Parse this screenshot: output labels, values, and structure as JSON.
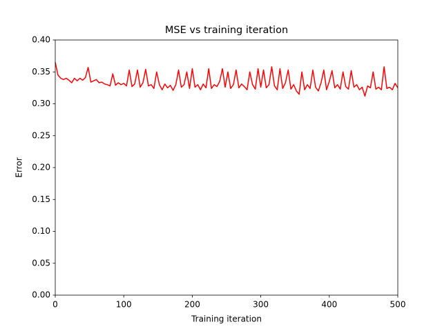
{
  "chart_data": {
    "type": "line",
    "title": "MSE vs training iteration",
    "x_label": "Training iteration",
    "y_label": "Error",
    "x": [
      0,
      4,
      8,
      12,
      16,
      20,
      24,
      28,
      32,
      36,
      40,
      44,
      48,
      52,
      56,
      60,
      64,
      68,
      72,
      76,
      80,
      84,
      88,
      92,
      96,
      100,
      104,
      108,
      112,
      116,
      120,
      124,
      128,
      132,
      136,
      140,
      144,
      148,
      152,
      156,
      160,
      164,
      168,
      172,
      176,
      180,
      184,
      188,
      192,
      196,
      200,
      204,
      208,
      212,
      216,
      220,
      224,
      228,
      232,
      236,
      240,
      244,
      248,
      252,
      256,
      260,
      264,
      268,
      272,
      276,
      280,
      284,
      288,
      292,
      296,
      300,
      304,
      308,
      312,
      316,
      320,
      324,
      328,
      332,
      336,
      340,
      344,
      348,
      352,
      356,
      360,
      364,
      368,
      372,
      376,
      380,
      384,
      388,
      392,
      396,
      400,
      404,
      408,
      412,
      416,
      420,
      424,
      428,
      432,
      436,
      440,
      444,
      448,
      452,
      456,
      460,
      464,
      468,
      472,
      476,
      480,
      484,
      488,
      492,
      496,
      500
    ],
    "values": [
      0.365,
      0.345,
      0.34,
      0.338,
      0.34,
      0.337,
      0.333,
      0.34,
      0.336,
      0.34,
      0.337,
      0.341,
      0.357,
      0.334,
      0.336,
      0.338,
      0.333,
      0.334,
      0.331,
      0.33,
      0.328,
      0.347,
      0.329,
      0.333,
      0.33,
      0.332,
      0.328,
      0.353,
      0.327,
      0.331,
      0.353,
      0.326,
      0.333,
      0.354,
      0.328,
      0.33,
      0.324,
      0.35,
      0.33,
      0.322,
      0.331,
      0.325,
      0.329,
      0.321,
      0.33,
      0.353,
      0.326,
      0.33,
      0.35,
      0.324,
      0.355,
      0.326,
      0.33,
      0.322,
      0.331,
      0.325,
      0.355,
      0.324,
      0.33,
      0.327,
      0.335,
      0.355,
      0.326,
      0.35,
      0.324,
      0.33,
      0.353,
      0.325,
      0.331,
      0.327,
      0.322,
      0.35,
      0.33,
      0.323,
      0.355,
      0.326,
      0.353,
      0.325,
      0.33,
      0.358,
      0.328,
      0.322,
      0.355,
      0.324,
      0.333,
      0.353,
      0.323,
      0.33,
      0.32,
      0.315,
      0.35,
      0.322,
      0.33,
      0.324,
      0.353,
      0.326,
      0.32,
      0.333,
      0.353,
      0.322,
      0.335,
      0.352,
      0.325,
      0.33,
      0.323,
      0.35,
      0.327,
      0.323,
      0.352,
      0.326,
      0.33,
      0.322,
      0.326,
      0.312,
      0.328,
      0.325,
      0.35,
      0.323,
      0.326,
      0.322,
      0.358,
      0.324,
      0.326,
      0.322,
      0.332,
      0.325
    ],
    "color": "#ff0000",
    "xlim": [
      0,
      500
    ],
    "xticks": [
      0,
      100,
      200,
      300,
      400,
      500
    ],
    "ylim": [
      0,
      0.4
    ],
    "yticks": [
      {
        "value": 0,
        "label": "0.00"
      },
      0.05,
      {
        "value": 0.1,
        "label": "0.10"
      },
      0.15,
      {
        "value": 0.2,
        "label": "0.20"
      },
      0.25,
      {
        "value": 0.3,
        "label": "0.30"
      },
      0.35,
      {
        "value": 0.4,
        "label": "0.40"
      }
    ]
  }
}
